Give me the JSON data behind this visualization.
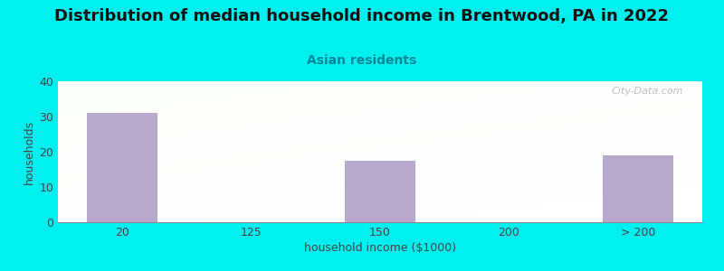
{
  "title": "Distribution of median household income in Brentwood, PA in 2022",
  "subtitle": "Asian residents",
  "xlabel": "household income ($1000)",
  "ylabel": "households",
  "categories": [
    "20",
    "125",
    "150",
    "200",
    "> 200"
  ],
  "values": [
    31,
    0,
    17.5,
    0,
    19
  ],
  "bar_color": "#b8a8cc",
  "background_color": "#00f0f0",
  "ylim": [
    0,
    40
  ],
  "yticks": [
    0,
    10,
    20,
    30,
    40
  ],
  "grid_color": "#ffffff",
  "title_fontsize": 13,
  "subtitle_fontsize": 10,
  "subtitle_color": "#008899",
  "axis_label_fontsize": 9,
  "tick_fontsize": 9,
  "watermark_text": "City-Data.com",
  "cat_positions": [
    0,
    1,
    2,
    3,
    4
  ]
}
